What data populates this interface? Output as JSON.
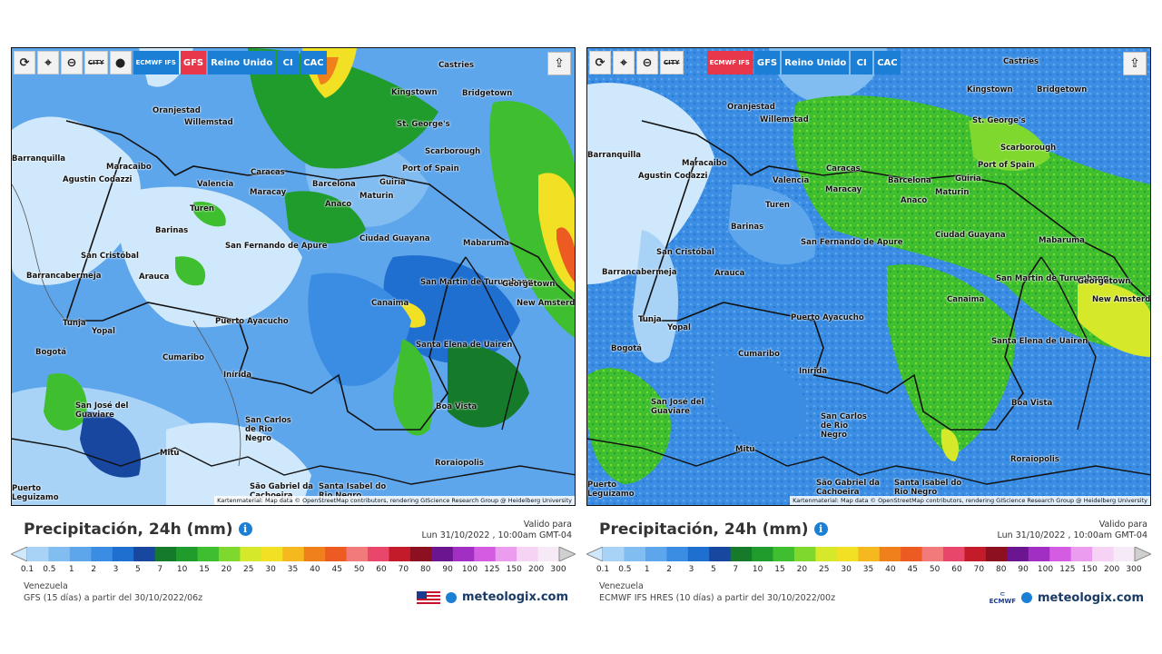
{
  "panels": [
    {
      "id": "left",
      "toolbar": {
        "ecmwf_label": "ECMWF IFS",
        "gfs_label": "GFS",
        "region_label": "Reino Unido",
        "ci_label": "CI",
        "cac_label": "CAC",
        "city_label": "CITY"
      },
      "active_model": "GFS",
      "title": "Precipitación, 24h (mm)",
      "valid_label": "Valido para",
      "valid_time": "Lun 31/10/2022 , 10:00am GMT-04",
      "region": "Venezuela",
      "model_desc": "GFS (15 días) a partir del 30/10/2022/06z",
      "credit": "Kartenmaterial: Map data © OpenStreetMap contributors, rendering GIScience Research Group @ Heidelberg University",
      "brand": "meteologix.com",
      "cities": [
        "Castries",
        "Oranjestad",
        "Willemstad",
        "Kingstown",
        "Bridgetown",
        "St. George's",
        "Scarborough",
        "Barranquilla",
        "Maracaibo",
        "Caracas",
        "Port of Spain",
        "Agustin Codazzi",
        "Valencia",
        "Maracay",
        "Barcelona",
        "Guiria",
        "Maturin",
        "Anaco",
        "Turen",
        "Barinas",
        "Ciudad Guayana",
        "Mabaruma",
        "San Cristóbal",
        "San Fernando de Apure",
        "Barrancabermeja",
        "Arauca",
        "San Martin de Turumbang",
        "Georgetown",
        "New Amsterdam",
        "Canaima",
        "Puerto Ayacucho",
        "Tunja",
        "Yopal",
        "Santa Elena de Uairen",
        "Bogotá",
        "Cumaribo",
        "Inírida",
        "Boa Vista",
        "San José del Guaviare",
        "San Carlos de Rio Negro",
        "Mitú",
        "Roraiopolis",
        "São Gabriel da Cachoeira",
        "Santa Isabel do Rio Negro",
        "Puerto Leguizamo"
      ]
    },
    {
      "id": "right",
      "toolbar": {
        "ecmwf_label": "ECMWF IFS",
        "gfs_label": "GFS",
        "region_label": "Reino Unido",
        "ci_label": "CI",
        "cac_label": "CAC",
        "city_label": "CITY"
      },
      "active_model": "ECMWF",
      "title": "Precipitación, 24h (mm)",
      "valid_label": "Valido para",
      "valid_time": "Lun 31/10/2022 , 10:00am GMT-04",
      "region": "Venezuela",
      "model_desc": "ECMWF IFS HRES (10 días) a partir del 30/10/2022/00z",
      "credit": "Kartenmaterial: Map data © OpenStreetMap contributors, rendering GIScience Research Group @ Heidelberg University",
      "brand": "meteologix.com",
      "cities": [
        "Castries",
        "Oranjestad",
        "Willemstad",
        "Kingstown",
        "Bridgetown",
        "St. George's",
        "Scarborough",
        "Barranquilla",
        "Maracaibo",
        "Caracas",
        "Port of Spain",
        "Agustin Codazzi",
        "Valencia",
        "Maracay",
        "Barcelona",
        "Guiria",
        "Maturin",
        "Anaco",
        "Turen",
        "Barinas",
        "Ciudad Guayana",
        "Mabaruma",
        "San Cristóbal",
        "San Fernando de Apure",
        "Barrancabermeja",
        "Arauca",
        "San Martin de Turumbang",
        "Georgetown",
        "New Amsterdam",
        "Canaima",
        "Puerto Ayacucho",
        "Tunja",
        "Yopal",
        "Santa Elena de Uairen",
        "Bogotá",
        "Cumaribo",
        "Inírida",
        "Boa Vista",
        "San José del Guaviare",
        "San Carlos de Rio Negro",
        "Mitú",
        "Roraiopolis",
        "São Gabriel da Cachoeira",
        "Santa Isabel do Rio Negro",
        "Puerto Leguizamo"
      ]
    }
  ],
  "legend": {
    "ticks": [
      "0.1",
      "0.5",
      "1",
      "2",
      "3",
      "5",
      "7",
      "10",
      "15",
      "20",
      "25",
      "30",
      "35",
      "40",
      "45",
      "50",
      "60",
      "70",
      "80",
      "90",
      "100",
      "125",
      "150",
      "200",
      "300"
    ],
    "colors": [
      "#cfe8fb",
      "#a8d3f7",
      "#82bdf2",
      "#5ea6ec",
      "#3a8de3",
      "#1f6fd0",
      "#17479e",
      "#157a2a",
      "#1f9c2c",
      "#3fbf2f",
      "#7fd82d",
      "#d6e82a",
      "#f2e024",
      "#f5b81e",
      "#f0801c",
      "#ec5b22",
      "#f27a7a",
      "#e8466a",
      "#c41b2b",
      "#8c1020",
      "#6b1590",
      "#a12fc4",
      "#d35ce2",
      "#eb9cef",
      "#f6d3f5",
      "#f5eaf5",
      "#d0d0d0"
    ]
  },
  "icons": [
    "refresh-icon",
    "location-pin-icon",
    "zoom-icon",
    "city-toggle-icon",
    "dot-marker-icon",
    "share-icon",
    "info-icon",
    "us-flag-icon",
    "ecmwf-logo-icon",
    "meteologix-logo-icon"
  ]
}
